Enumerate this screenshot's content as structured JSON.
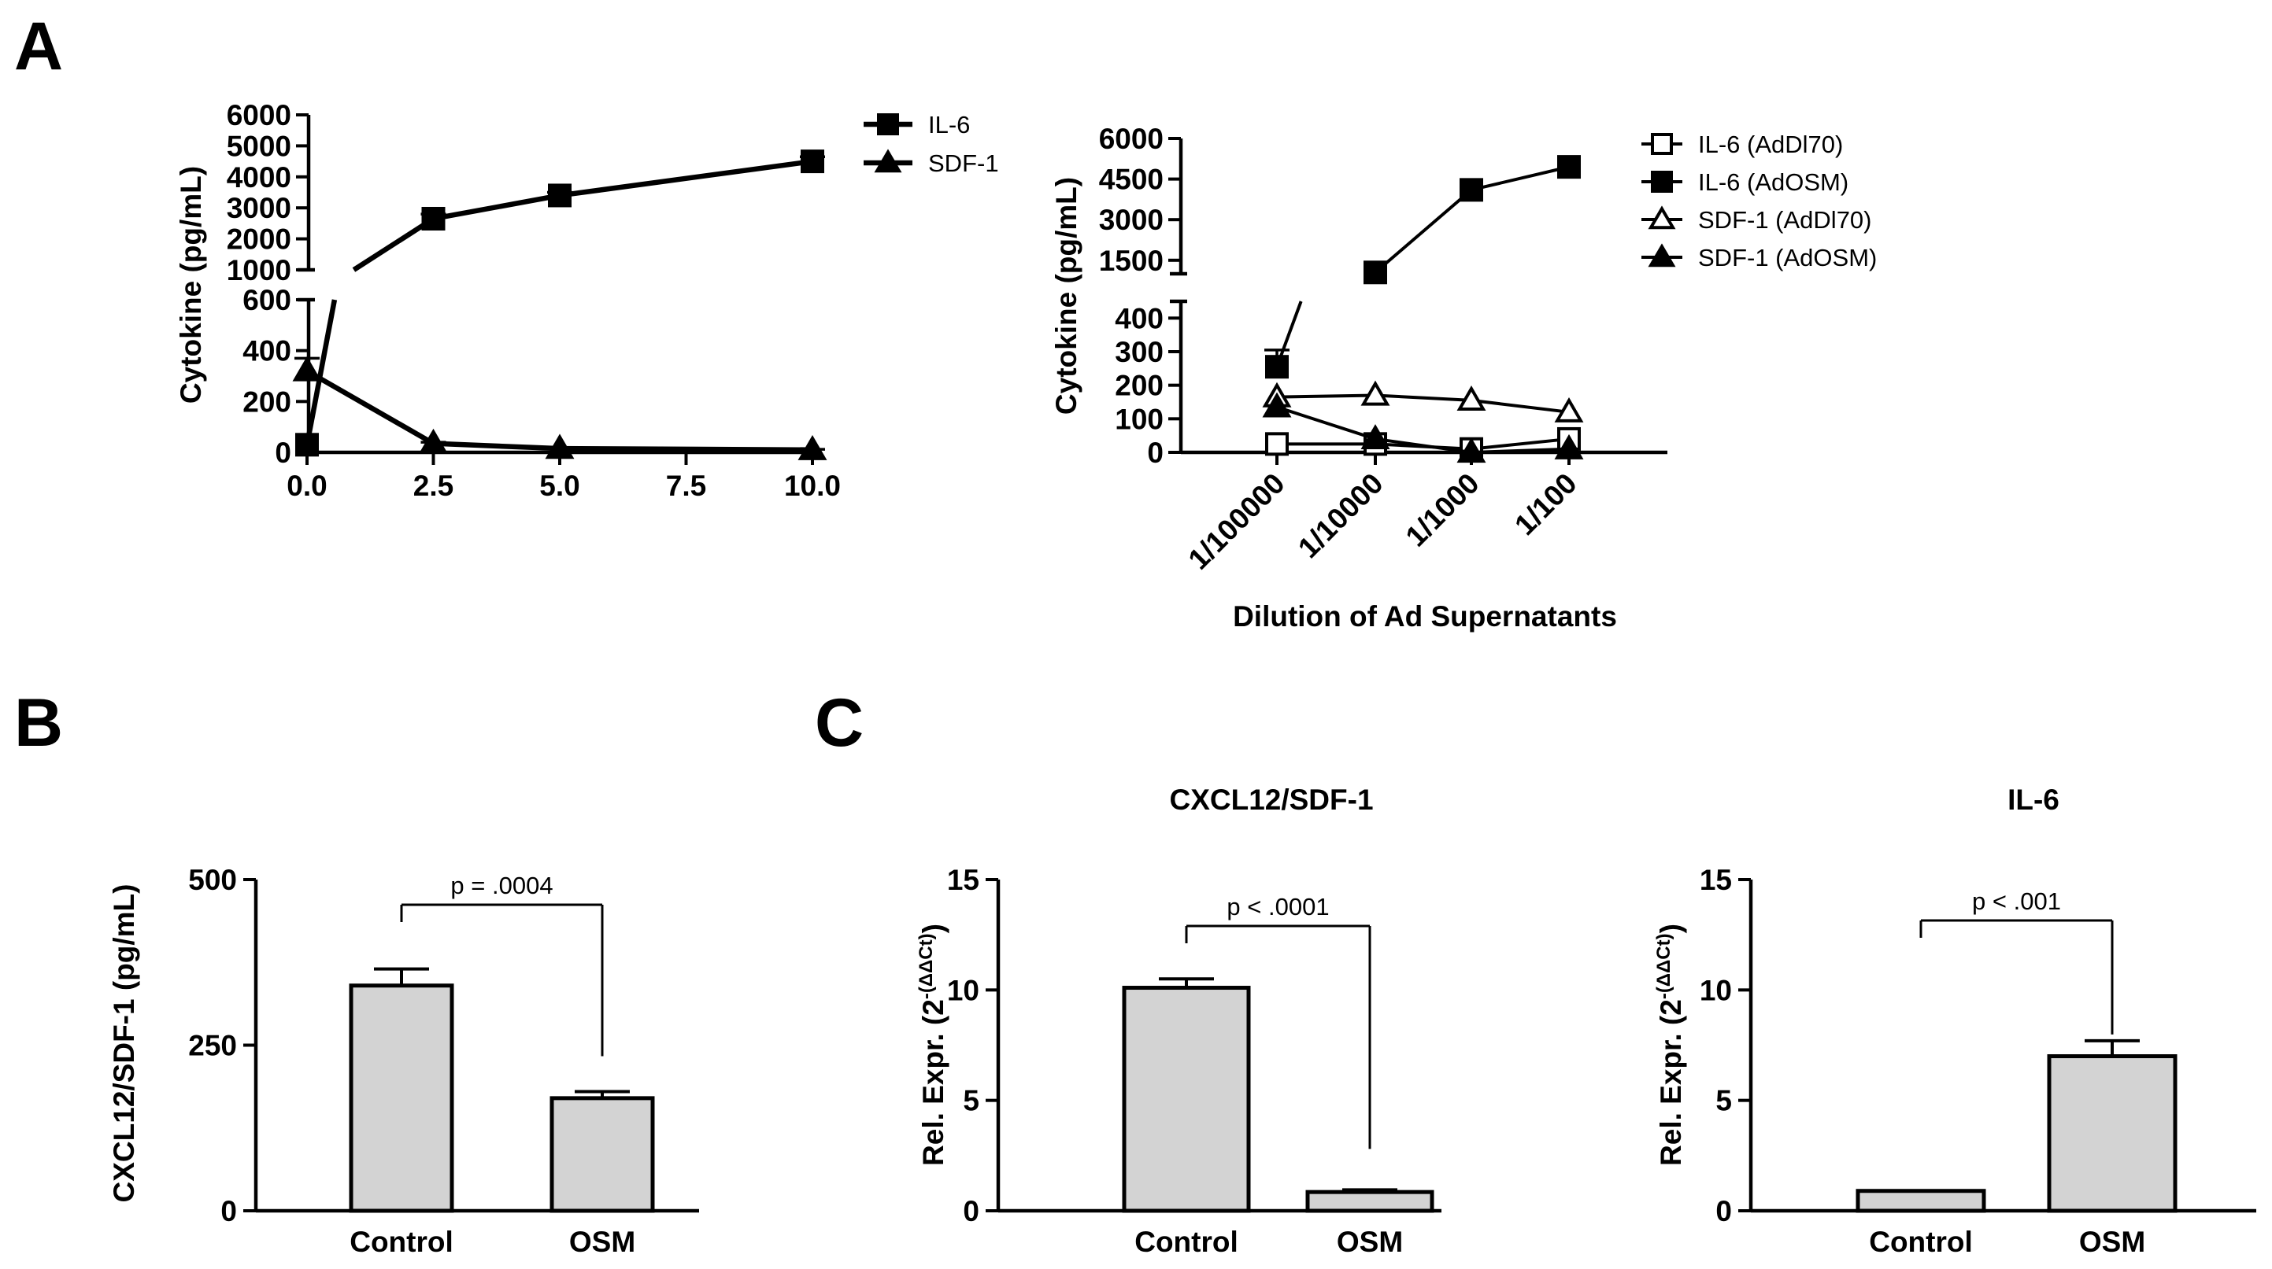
{
  "panel_labels": [
    "A",
    "B",
    "C"
  ],
  "chart_data": [
    {
      "id": "A1",
      "type": "line",
      "title": "",
      "xlabel": "",
      "ylabel": "Cytokine (pg/mL)",
      "xlim": [
        0,
        10
      ],
      "x_ticks": [
        0,
        2.5,
        5,
        7.5,
        10
      ],
      "x_tick_labels": [
        "0.0",
        "2.5",
        "5.0",
        "7.5",
        "10.0"
      ],
      "y_break": true,
      "ylim_lower": [
        0,
        600
      ],
      "ylim_upper": [
        1000,
        6000
      ],
      "y_ticks_lower": [
        0,
        200,
        400,
        600
      ],
      "y_tick_labels_lower": [
        "0",
        "200",
        "400",
        "600"
      ],
      "y_ticks_upper": [
        1000,
        2000,
        3000,
        4000,
        5000,
        6000
      ],
      "y_tick_labels_upper": [
        "1000",
        "2000",
        "3000",
        "4000",
        "5000",
        "6000"
      ],
      "legend": "top-right",
      "series": [
        {
          "name": "IL-6",
          "marker": "square-filled",
          "x": [
            0,
            2.5,
            5,
            10
          ],
          "values": [
            30,
            2650,
            3400,
            4500
          ],
          "error": [
            0,
            150,
            100,
            150
          ]
        },
        {
          "name": "SDF-1",
          "marker": "triangle-filled",
          "x": [
            0,
            2.5,
            5,
            10
          ],
          "values": [
            320,
            35,
            15,
            10
          ],
          "error": [
            50,
            5,
            3,
            2
          ]
        }
      ]
    },
    {
      "id": "A2",
      "type": "line",
      "title": "",
      "xlabel": "Dilution of Ad Supernatants",
      "ylabel": "Cytokine (pg/mL)",
      "categories": [
        "1/100000",
        "1/10000",
        "1/1000",
        "1/100"
      ],
      "y_break": true,
      "ylim_lower": [
        0,
        450
      ],
      "ylim_upper": [
        1000,
        6000
      ],
      "y_ticks_lower": [
        0,
        100,
        200,
        300,
        400
      ],
      "y_tick_labels_lower": [
        "0",
        "100",
        "200",
        "300",
        "400"
      ],
      "y_ticks_upper": [
        1500,
        3000,
        4500,
        6000
      ],
      "y_tick_labels_upper": [
        "1500",
        "3000",
        "4500",
        "6000"
      ],
      "legend": "top-right",
      "series": [
        {
          "name": "IL-6 (AdDl70)",
          "marker": "square-open",
          "values": [
            25,
            25,
            10,
            40
          ],
          "error": [
            0,
            0,
            0,
            0
          ]
        },
        {
          "name": "IL-6 (AdOSM)",
          "marker": "square-filled",
          "values": [
            255,
            1050,
            4100,
            4950
          ],
          "error": [
            50,
            0,
            0,
            0
          ]
        },
        {
          "name": "SDF-1 (AdDl70)",
          "marker": "triangle-open",
          "values": [
            165,
            170,
            155,
            120
          ],
          "error": [
            0,
            0,
            0,
            0
          ]
        },
        {
          "name": "SDF-1 (AdOSM)",
          "marker": "triangle-filled",
          "values": [
            135,
            40,
            0,
            10
          ],
          "error": [
            0,
            0,
            0,
            0
          ]
        }
      ]
    },
    {
      "id": "B",
      "type": "bar",
      "title": "",
      "xlabel": "",
      "ylabel": "CXCL12/SDF-1 (pg/mL)",
      "categories": [
        "Control",
        "OSM"
      ],
      "values": [
        340,
        170
      ],
      "error": [
        25,
        10
      ],
      "ylim": [
        0,
        500
      ],
      "y_ticks": [
        0,
        250,
        500
      ],
      "y_tick_labels": [
        "0",
        "250",
        "500"
      ],
      "annotation": "p = .0004"
    },
    {
      "id": "C1",
      "type": "bar",
      "title": "CXCL12/SDF-1",
      "xlabel": "",
      "ylabel": "Rel. Expr. (2",
      "ylabel_exponent": "-(ΔΔCt)",
      "ylabel_close": ")",
      "categories": [
        "Control",
        "OSM"
      ],
      "values": [
        10.1,
        0.85
      ],
      "error": [
        0.4,
        0.1
      ],
      "ylim": [
        0,
        15
      ],
      "y_ticks": [
        0,
        5,
        10,
        15
      ],
      "y_tick_labels": [
        "0",
        "5",
        "10",
        "15"
      ],
      "annotation": "p < .0001"
    },
    {
      "id": "C2",
      "type": "bar",
      "title": "IL-6",
      "xlabel": "",
      "ylabel": "Rel. Expr. (2",
      "ylabel_exponent": "-(ΔΔCt)",
      "ylabel_close": ")",
      "categories": [
        "Control",
        "OSM"
      ],
      "values": [
        0.9,
        7.0
      ],
      "error": [
        0,
        0.7
      ],
      "ylim": [
        0,
        15
      ],
      "y_ticks": [
        0,
        5,
        10,
        15
      ],
      "y_tick_labels": [
        "0",
        "5",
        "10",
        "15"
      ],
      "annotation": "p < .001"
    }
  ],
  "colors": {
    "bar_fill": "#d3d3d3",
    "ink": "#000000",
    "background": "#ffffff"
  }
}
